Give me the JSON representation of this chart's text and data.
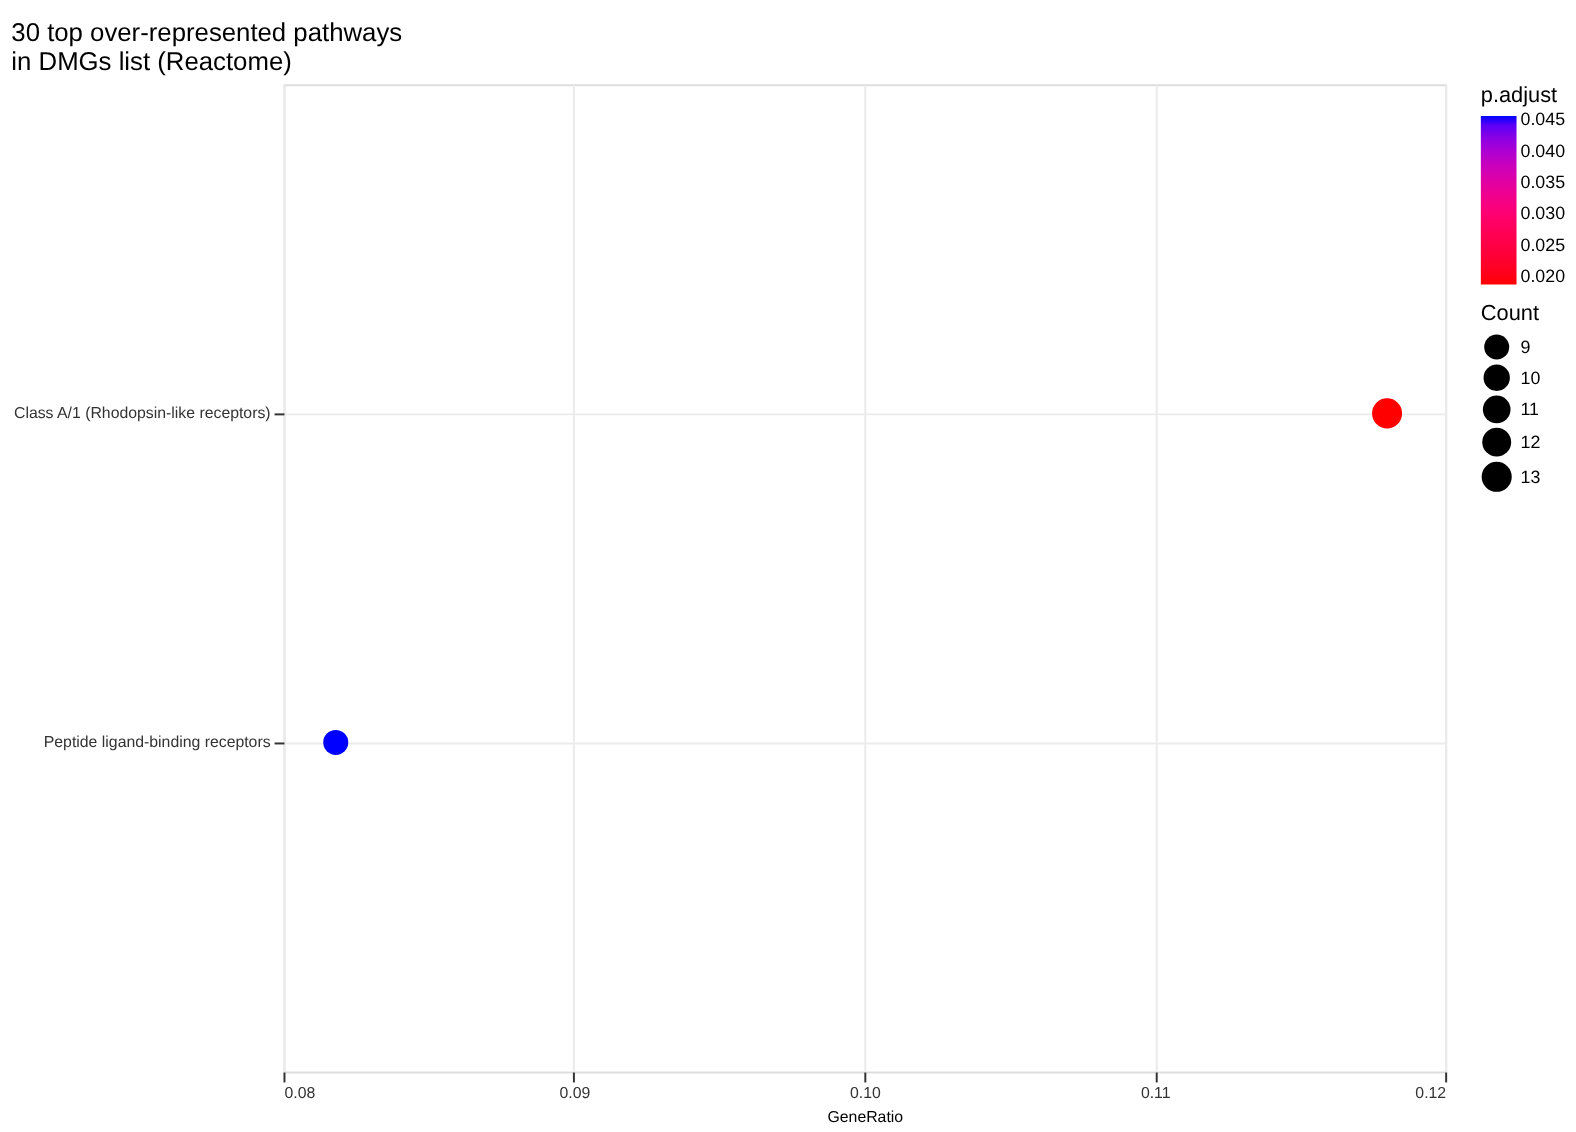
{
  "chart_data": {
    "type": "bubble",
    "title": [
      "30 top over-represented pathways",
      "in DMGs list (Reactome)"
    ],
    "xlabel": "GeneRatio",
    "categories": [
      "Class A/1 (Rhodopsin-like receptors)",
      "Peptide ligand-binding receptors"
    ],
    "orientation": "horizontal",
    "values": [
      0.118,
      0.0818
    ],
    "sizes": [
      13,
      9
    ],
    "size_legend": [
      9,
      10,
      11,
      12,
      13
    ],
    "cvalues": [
      0.0187,
      0.0455
    ],
    "colors": [
      "#ff0000",
      "#0000ff"
    ],
    "clabel": "p.adjust",
    "clim": [
      0.0187,
      0.0455
    ],
    "cticks": [
      {
        "value": 0.02,
        "label": "0.020"
      },
      0.025,
      {
        "value": 0.03,
        "label": "0.030"
      },
      0.035,
      {
        "value": 0.04,
        "label": "0.040"
      },
      0.045
    ],
    "legend_title": "Count",
    "xlim": [
      0.08,
      0.12
    ],
    "xticks": [
      0.08,
      0.09,
      {
        "value": 0.1,
        "label": "0.10"
      },
      0.11,
      0.12
    ],
    "grid": true
  }
}
